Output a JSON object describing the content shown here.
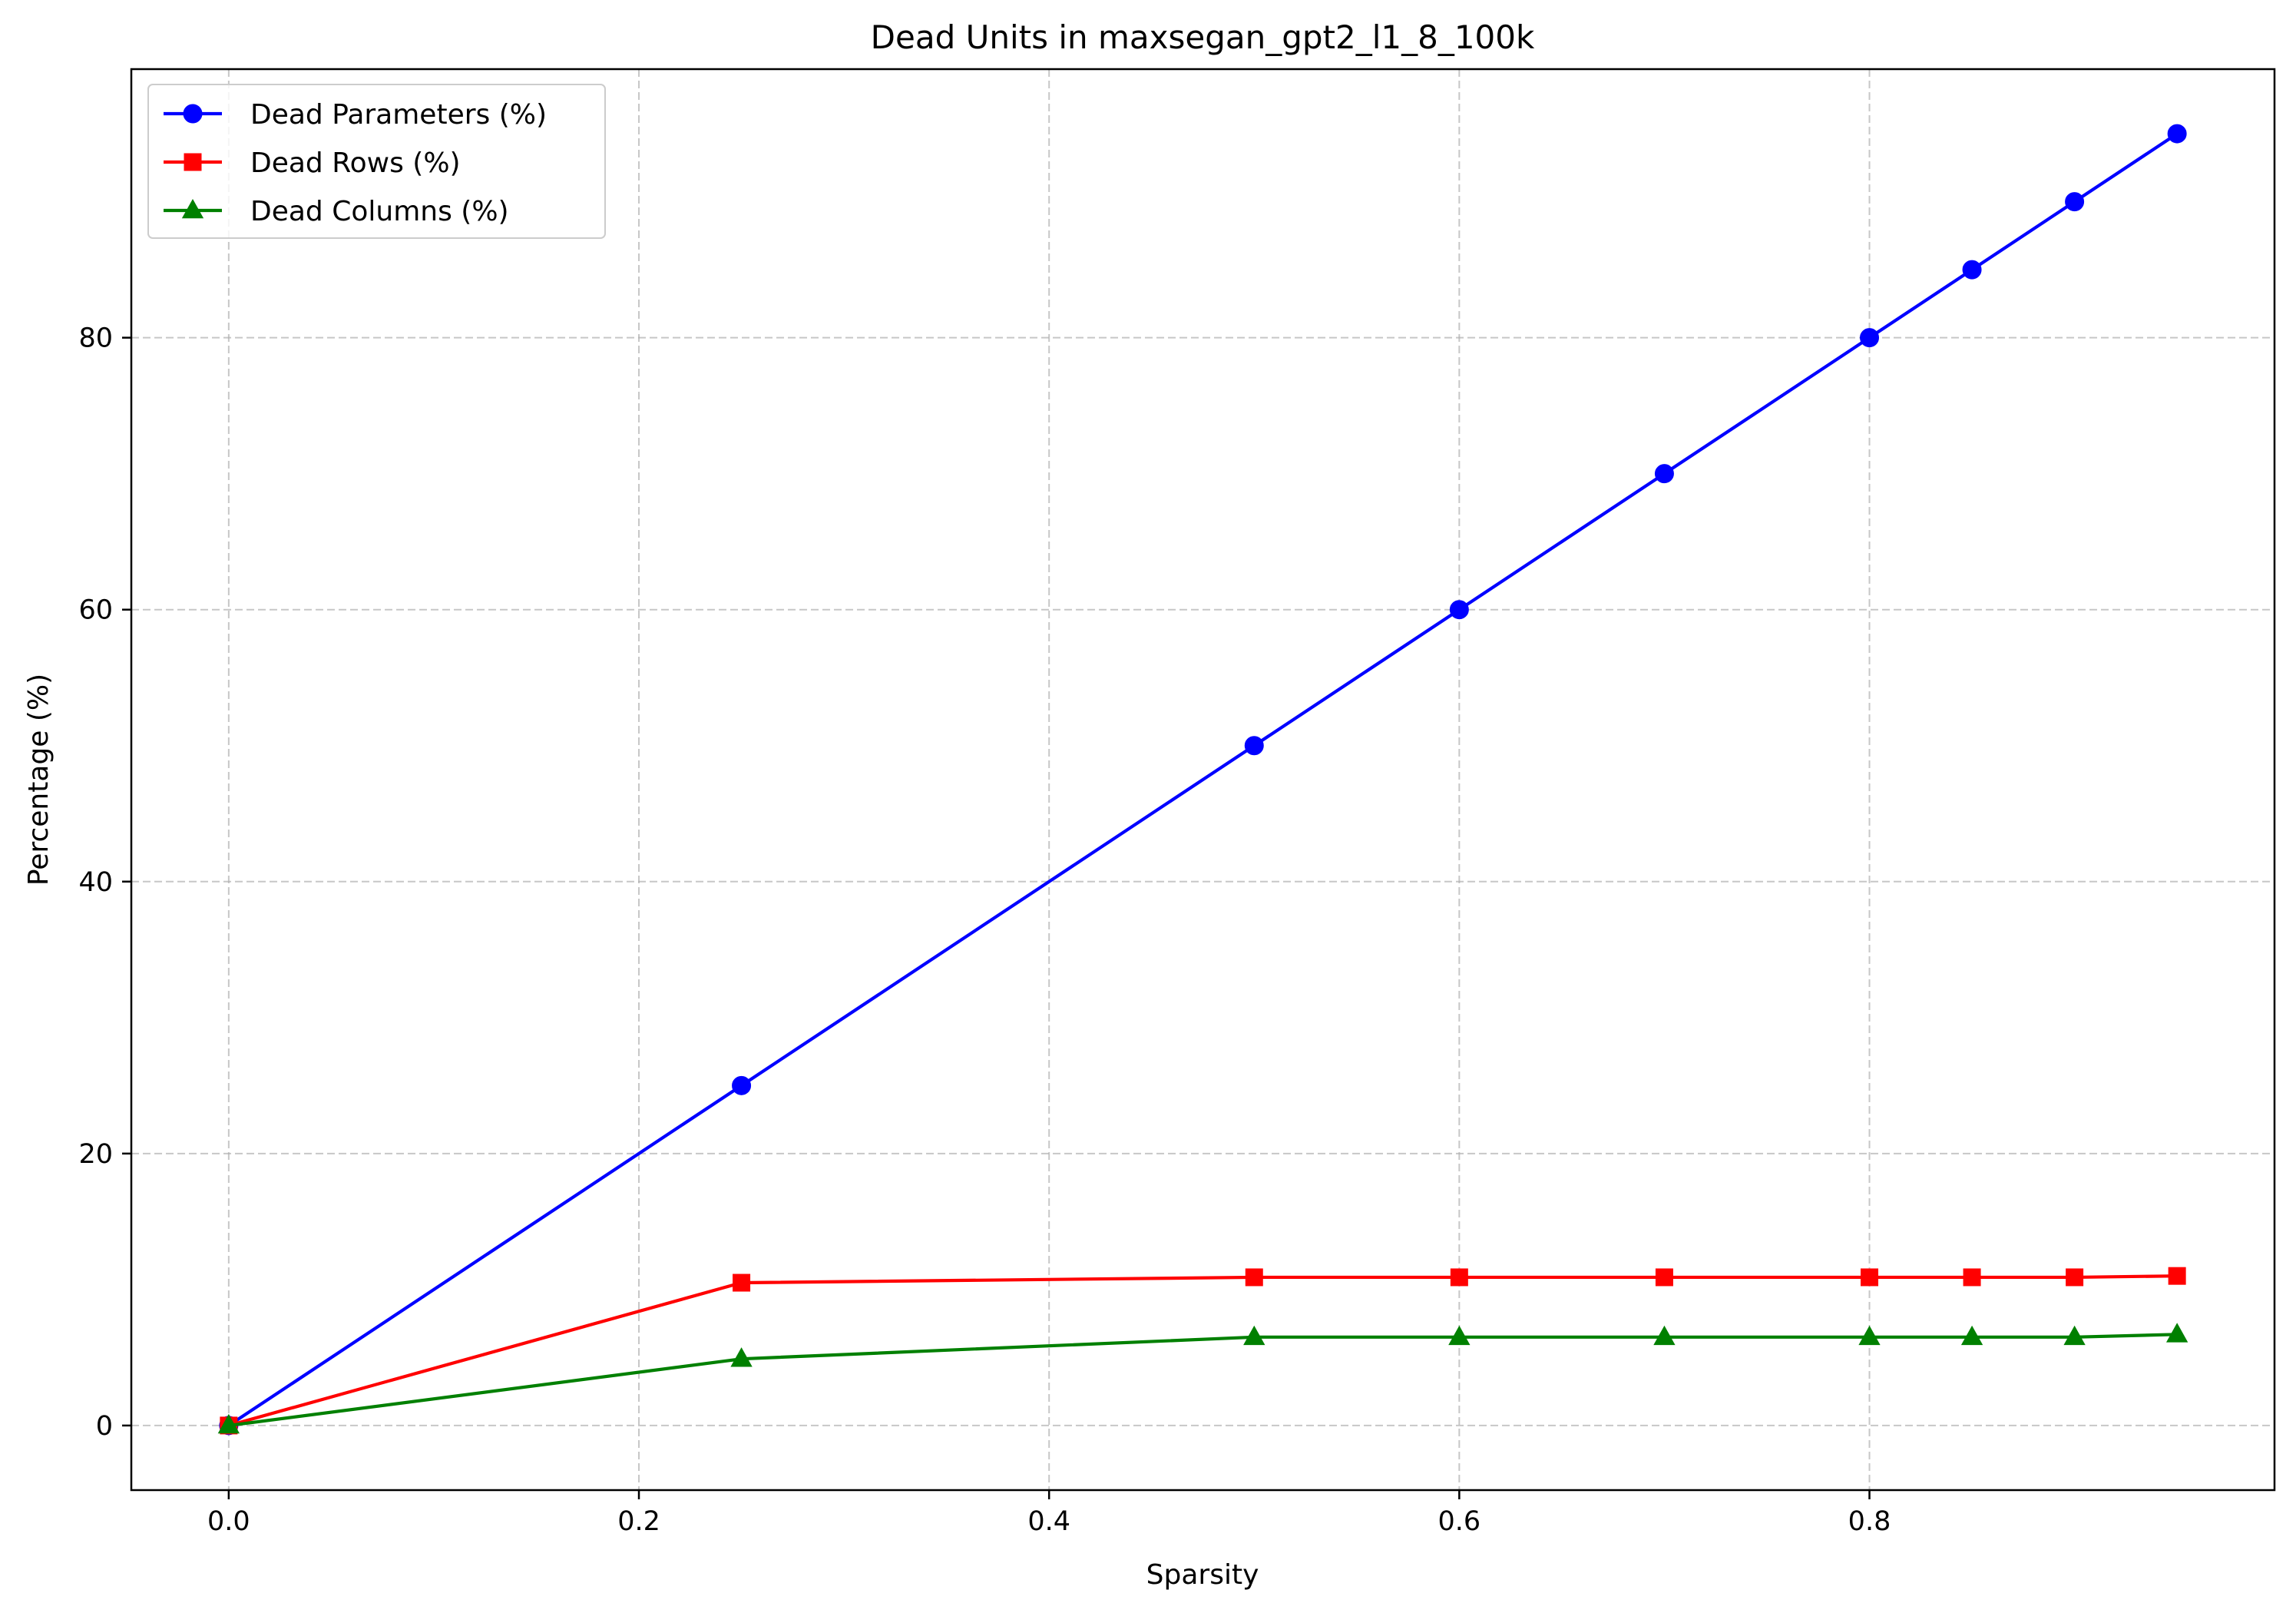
{
  "chart_data": {
    "type": "line",
    "title": "Dead Units in maxsegan_gpt2_l1_8_100k",
    "xlabel": "Sparsity",
    "ylabel": "Percentage (%)",
    "xlim": [
      -0.0475,
      0.9975
    ],
    "ylim": [
      -4.75,
      99.75
    ],
    "xticks": [
      0.0,
      0.2,
      0.4,
      0.6,
      0.8
    ],
    "xtick_labels": [
      "0.0",
      "0.2",
      "0.4",
      "0.6",
      "0.8"
    ],
    "yticks": [
      0,
      20,
      40,
      60,
      80
    ],
    "ytick_labels": [
      "0",
      "20",
      "40",
      "60",
      "80"
    ],
    "grid": true,
    "legend_position": "upper-left",
    "x": [
      0.0,
      0.25,
      0.5,
      0.6,
      0.7,
      0.8,
      0.85,
      0.9,
      0.95
    ],
    "series": [
      {
        "name": "Dead Parameters (%)",
        "color": "#0000ff",
        "marker": "circle",
        "values": [
          0,
          25,
          50,
          60,
          70,
          80,
          85,
          90,
          95
        ]
      },
      {
        "name": "Dead Rows (%)",
        "color": "#ff0000",
        "marker": "square",
        "values": [
          0,
          10.5,
          10.9,
          10.9,
          10.9,
          10.9,
          10.9,
          10.9,
          11.0
        ]
      },
      {
        "name": "Dead Columns (%)",
        "color": "#008000",
        "marker": "triangle",
        "values": [
          0,
          4.9,
          6.5,
          6.5,
          6.5,
          6.5,
          6.5,
          6.5,
          6.7
        ]
      }
    ]
  }
}
